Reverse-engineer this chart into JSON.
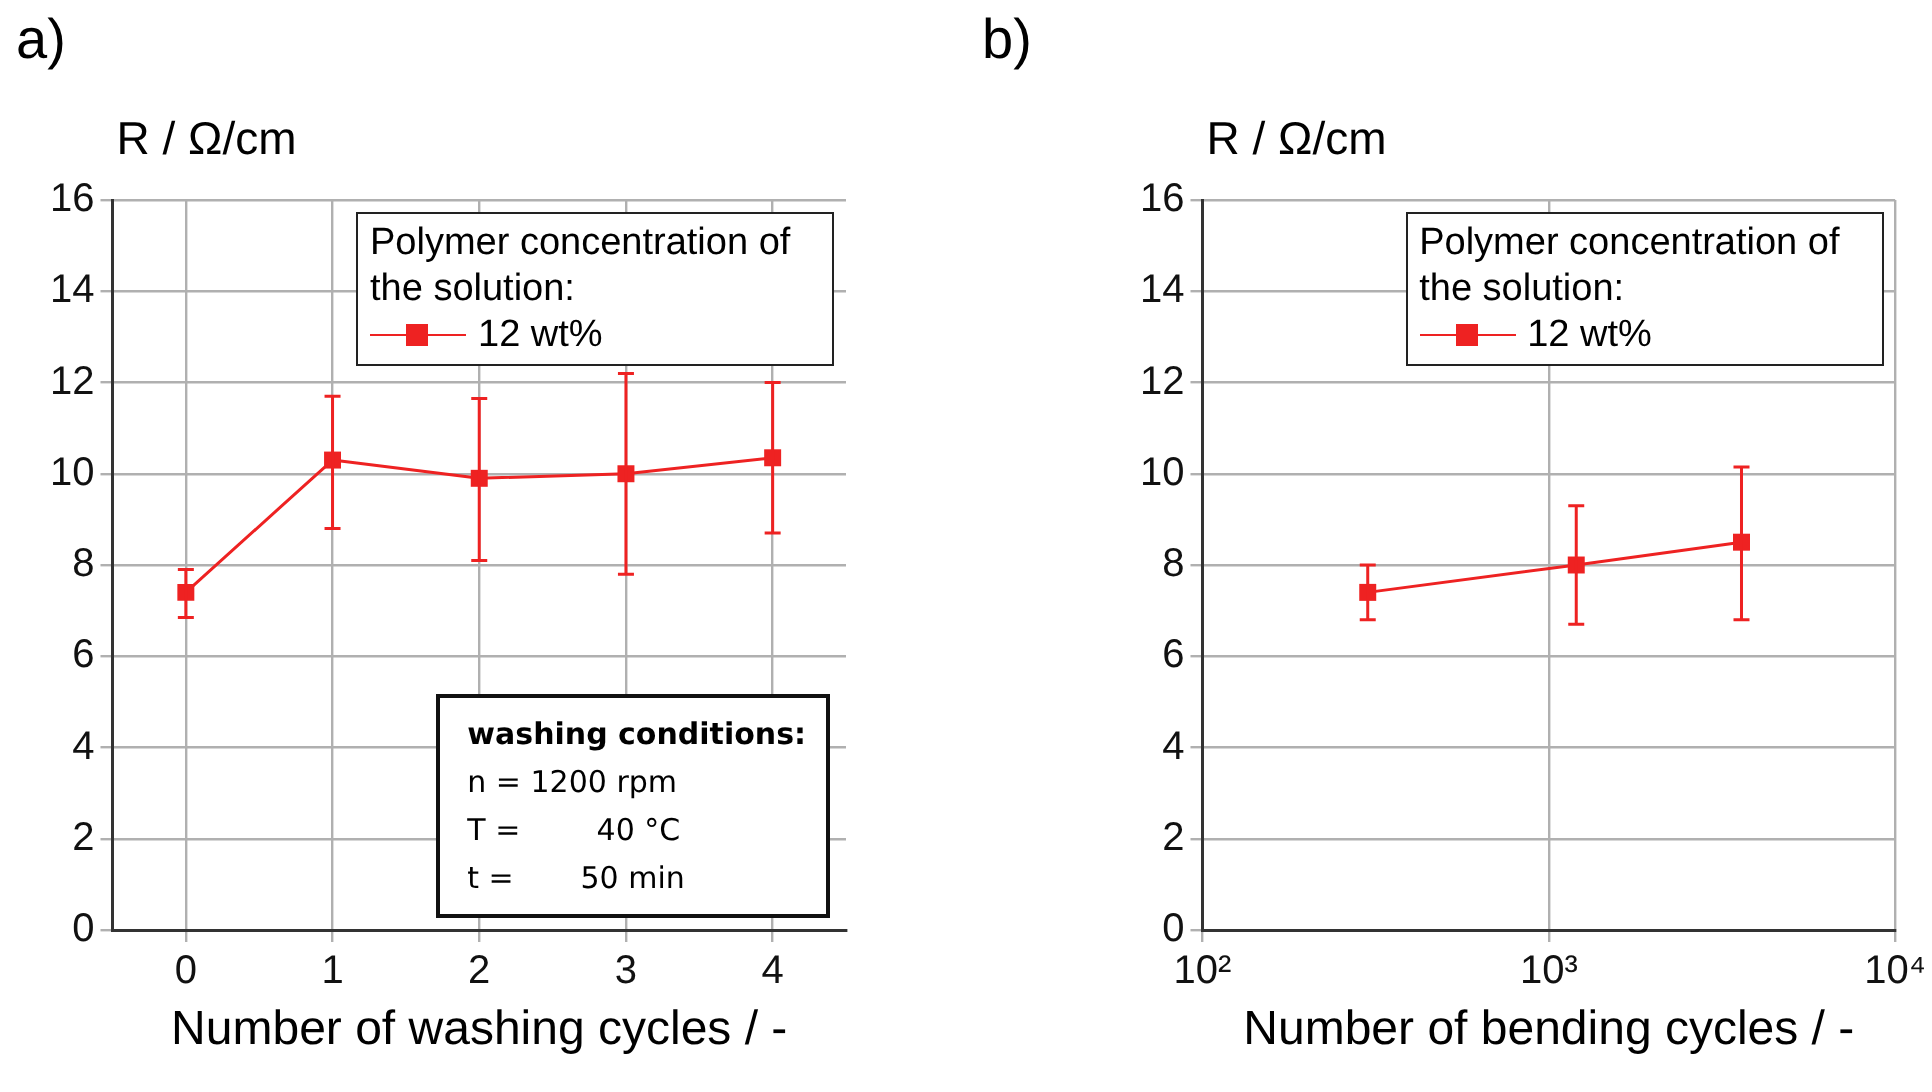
{
  "chart_data": [
    {
      "type": "line",
      "title": "a)",
      "ylabel": "R / Ω/cm",
      "xlabel": "Number of washing cycles / -",
      "legend_title": "Polymer concentration of the solution:",
      "legend": "top right",
      "grid": true,
      "marker": "square",
      "x": [
        0,
        1,
        2,
        3,
        4
      ],
      "series": [
        {
          "name": "12 wt%",
          "color": "#ee2222",
          "values": [
            7.4,
            10.3,
            9.9,
            10.0,
            10.35
          ],
          "errors": [
            [
              6.85,
              7.9
            ],
            [
              8.8,
              11.7
            ],
            [
              8.1,
              11.65
            ],
            [
              7.8,
              12.2
            ],
            [
              8.7,
              12.0
            ]
          ]
        }
      ],
      "xlim": [
        -0.5,
        4.5
      ],
      "xticks": [
        0,
        1,
        2,
        3,
        4
      ],
      "ylim": [
        0,
        16
      ],
      "yticks": [
        0,
        2,
        4,
        6,
        8,
        10,
        12,
        14,
        16
      ],
      "annotations": [
        "washing conditions:",
        "n = 1200 rpm",
        "T =        40 °C",
        "t =       50 min"
      ]
    },
    {
      "type": "line",
      "title": "b)",
      "ylabel": "R / Ω/cm",
      "xlabel": "Number of bending cycles  / -",
      "legend_title": "Polymer concentration of the solution:",
      "legend": "top right",
      "grid": true,
      "marker": "square",
      "log": "x",
      "x": [
        300,
        1200,
        3600
      ],
      "series": [
        {
          "name": "12 wt%",
          "color": "#ee2222",
          "values": [
            7.4,
            8.0,
            8.5
          ],
          "errors": [
            [
              6.8,
              8.0
            ],
            [
              6.7,
              9.3
            ],
            [
              6.8,
              10.15
            ]
          ]
        }
      ],
      "xlim": [
        100,
        10000
      ],
      "xticks": [
        {
          "value": 100,
          "label": "10²"
        },
        {
          "value": 1000,
          "label": "10³"
        },
        {
          "value": 10000,
          "label": "10⁴"
        }
      ],
      "ylim": [
        0,
        16
      ],
      "yticks": [
        0,
        2,
        4,
        6,
        8,
        10,
        12,
        14,
        16
      ]
    }
  ]
}
